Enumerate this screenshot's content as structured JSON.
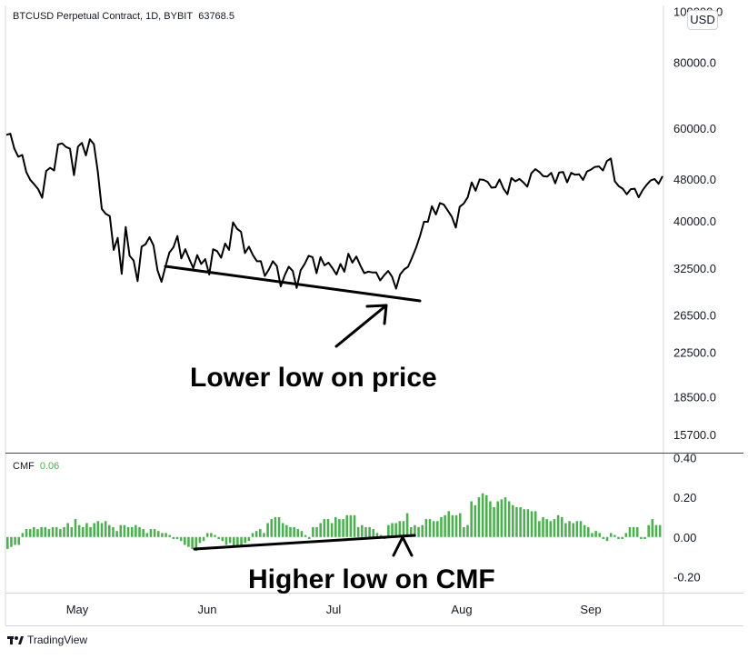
{
  "header": {
    "symbol_line": "BTCUSD Perpetual Contract, 1D, BYBIT",
    "last_price": "63768.5",
    "currency_badge": "USD"
  },
  "indicator": {
    "name": "CMF",
    "value": "0.06"
  },
  "annotations": {
    "price": "Lower low on price",
    "cmf": "Higher low on CMF"
  },
  "branding": {
    "label": "TradingView"
  },
  "chart_data": [
    {
      "type": "line",
      "title": "BTCUSD Perpetual Contract, 1D, BYBIT",
      "ylabel": "",
      "xlabel": "",
      "x_tick_labels": [
        "May",
        "Jun",
        "Jul",
        "Aug",
        "Sep"
      ],
      "y_tick_labels": [
        "100000.0",
        "80000.0",
        "60000.0",
        "48000.0",
        "40000.0",
        "32500.0",
        "26500.0",
        "22500.0",
        "18500.0",
        "15700.0"
      ],
      "y_scale": "log",
      "ylim": [
        14500,
        105000
      ],
      "series": [
        {
          "values": [
            58200,
            58500,
            54800,
            52900,
            53300,
            49500,
            47800,
            46900,
            45900,
            44200,
            49700,
            50400,
            49800,
            55800,
            56100,
            55200,
            54800,
            48800,
            55300,
            56200,
            53200,
            57100,
            55900,
            49600,
            42100,
            41200,
            40800,
            35200,
            37100,
            31700,
            38900,
            34300,
            33600,
            30700,
            35700,
            36100,
            37200,
            35900,
            32200,
            30600,
            32700,
            34800,
            35600,
            37400,
            33900,
            35300,
            33800,
            32500,
            34400,
            33100,
            33800,
            31600,
            35300,
            35000,
            34000,
            36200,
            35200,
            39700,
            38600,
            38100,
            34700,
            35700,
            34400,
            33500,
            33500,
            31400,
            32300,
            33500,
            32800,
            30000,
            31500,
            32700,
            32100,
            29800,
            32200,
            33100,
            34300,
            34100,
            31800,
            34100,
            32900,
            33300,
            32500,
            31600,
            33100,
            32000,
            34600,
            33300,
            34200,
            32900,
            31800,
            32000,
            31900,
            31900,
            30800,
            31500,
            32100,
            31300,
            29700,
            31600,
            32300,
            32700,
            34000,
            35500,
            37400,
            39800,
            39800,
            42600,
            41100,
            43200,
            42900,
            41800,
            40700,
            38800,
            42500,
            43100,
            44300,
            47300,
            45600,
            47900,
            47800,
            47400,
            46200,
            46300,
            47900,
            46000,
            44900,
            48200,
            47500,
            48000,
            47300,
            46400,
            49200,
            50100,
            49500,
            48600,
            48500,
            49300,
            47100,
            49400,
            49500,
            47300,
            49300,
            48900,
            49000,
            47800,
            49600,
            50000,
            50600,
            50700,
            49800,
            51900,
            52500,
            47500,
            46500,
            46000,
            44900,
            45900,
            46000,
            44300,
            45700,
            46800,
            47700,
            48000,
            47000,
            48600
          ]
        }
      ]
    },
    {
      "type": "bar",
      "title": "CMF",
      "ylabel": "",
      "xlabel": "",
      "y_tick_labels": [
        "0.40",
        "0.20",
        "0.00",
        "-0.20"
      ],
      "ylim": [
        -0.28,
        0.42
      ],
      "series": [
        {
          "name": "CMF",
          "values": [
            -0.06,
            -0.05,
            -0.04,
            -0.04,
            0.02,
            0.04,
            0.04,
            0.05,
            0.04,
            0.05,
            0.05,
            0.04,
            0.05,
            0.05,
            0.04,
            0.05,
            0.07,
            0.05,
            0.09,
            0.06,
            0.05,
            0.07,
            0.05,
            0.07,
            0.08,
            0.07,
            0.08,
            0.06,
            0.05,
            0.03,
            0.06,
            0.06,
            0.05,
            0.05,
            0.06,
            0.05,
            0.04,
            0.02,
            0.04,
            0.04,
            0.03,
            0.02,
            0.02,
            0.01,
            -0.01,
            -0.01,
            -0.02,
            -0.04,
            -0.05,
            -0.06,
            -0.07,
            -0.03,
            -0.02,
            0.02,
            0.02,
            0.01,
            -0.01,
            -0.02,
            -0.04,
            -0.03,
            -0.05,
            -0.05,
            -0.04,
            -0.03,
            -0.02,
            0.02,
            0.03,
            0.04,
            0.02,
            0.07,
            0.09,
            0.1,
            0.1,
            0.07,
            0.06,
            0.05,
            0.05,
            0.04,
            0.03,
            0.01,
            -0.01,
            0.05,
            0.05,
            0.07,
            0.09,
            0.09,
            0.07,
            0.1,
            0.09,
            0.09,
            0.11,
            0.11,
            0.11,
            0.05,
            0.06,
            0.05,
            0.05,
            0.04,
            0.02,
            0.01,
            -0.01,
            0.06,
            0.07,
            0.07,
            0.08,
            0.08,
            0.12,
            0.05,
            0.06,
            0.05,
            0.06,
            0.09,
            0.09,
            0.08,
            0.08,
            0.1,
            0.11,
            0.13,
            0.11,
            0.11,
            0.12,
            0.05,
            0.06,
            0.18,
            0.16,
            0.2,
            0.22,
            0.21,
            0.18,
            0.15,
            0.18,
            0.19,
            0.2,
            0.18,
            0.16,
            0.15,
            0.15,
            0.14,
            0.14,
            0.13,
            0.13,
            0.08,
            0.1,
            0.09,
            0.08,
            0.09,
            0.11,
            0.1,
            0.07,
            0.08,
            0.07,
            0.08,
            0.08,
            0.06,
            0.05,
            0.02,
            0.03,
            0.02,
            -0.01,
            -0.02,
            0.02,
            0.01,
            -0.01,
            -0.01,
            0.02,
            0.05,
            0.05,
            0.05,
            -0.01,
            -0.01,
            0.06,
            0.09,
            0.06,
            0.06
          ]
        }
      ]
    }
  ]
}
